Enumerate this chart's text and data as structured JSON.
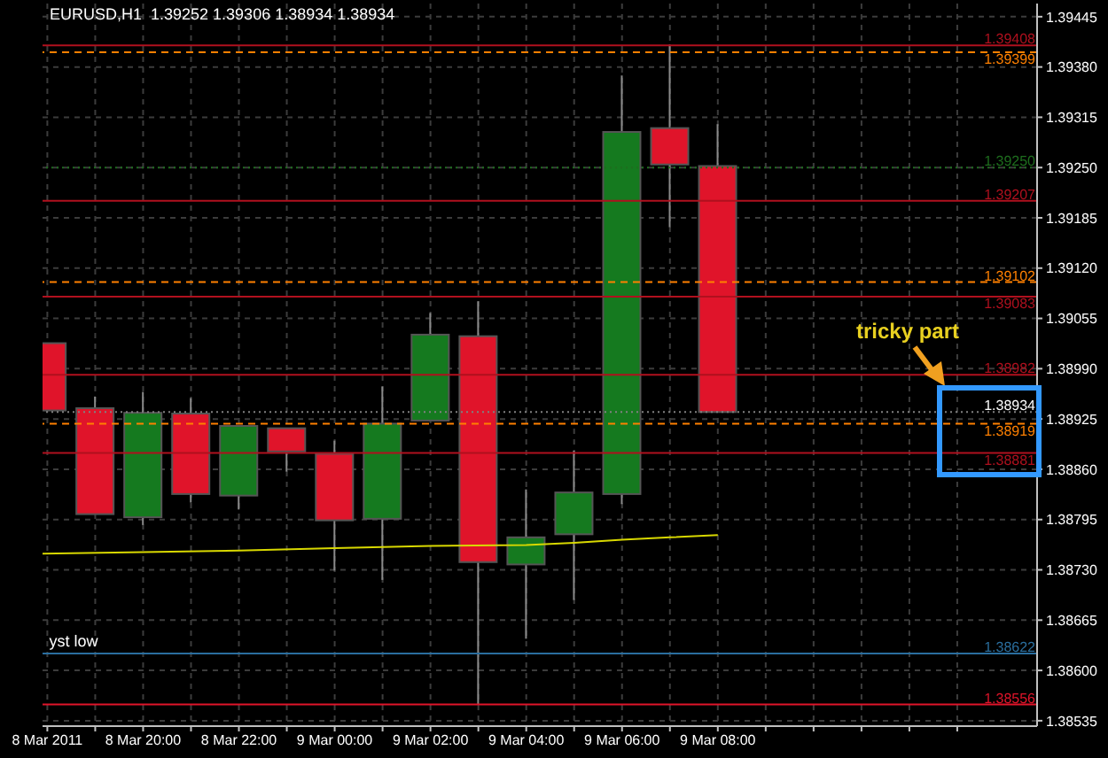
{
  "chart_data": {
    "type": "candlestick",
    "title": "EURUSD,H1  1.39252 1.39306 1.38934 1.38934",
    "x": [
      "2011-03-08T18:00",
      "2011-03-08T19:00",
      "2011-03-08T20:00",
      "2011-03-08T21:00",
      "2011-03-08T22:00",
      "2011-03-08T23:00",
      "2011-03-09T00:00",
      "2011-03-09T01:00",
      "2011-03-09T02:00",
      "2011-03-09T03:00",
      "2011-03-09T04:00",
      "2011-03-09T05:00",
      "2011-03-09T06:00",
      "2011-03-09T07:00",
      "2011-03-09T08:00"
    ],
    "ohlc": [
      [
        1.39023,
        1.39023,
        1.38936,
        1.38936
      ],
      [
        1.38939,
        1.38954,
        1.38802,
        1.38802
      ],
      [
        1.38798,
        1.3896,
        1.38788,
        1.38933
      ],
      [
        1.38932,
        1.38952,
        1.38817,
        1.38828
      ],
      [
        1.38826,
        1.38916,
        1.38808,
        1.38916
      ],
      [
        1.38913,
        1.38913,
        1.38857,
        1.38883
      ],
      [
        1.3888,
        1.38897,
        1.38729,
        1.38794
      ],
      [
        1.38796,
        1.38967,
        1.38717,
        1.38919
      ],
      [
        1.38923,
        1.39062,
        1.38923,
        1.39034
      ],
      [
        1.39032,
        1.39077,
        1.38556,
        1.3874
      ],
      [
        1.38737,
        1.38834,
        1.38641,
        1.38772
      ],
      [
        1.38776,
        1.38884,
        1.38691,
        1.3883
      ],
      [
        1.38828,
        1.39369,
        1.38815,
        1.39296
      ],
      [
        1.39301,
        1.39409,
        1.39173,
        1.39254
      ],
      [
        1.39252,
        1.39306,
        1.38934,
        1.38934
      ]
    ],
    "colors": [
      "#e0142a",
      "#e0142a",
      "#157a1f",
      "#e0142a",
      "#157a1f",
      "#e0142a",
      "#e0142a",
      "#157a1f",
      "#157a1f",
      "#e0142a",
      "#157a1f",
      "#157a1f",
      "#157a1f",
      "#e0142a",
      "#e0142a"
    ],
    "series": [
      {
        "type": "line",
        "color": "#d8d800",
        "x": [
          "2011-03-08T17:54",
          "2011-03-08T20:00",
          "2011-03-08T22:00",
          "2011-03-09T00:00",
          "2011-03-09T02:00",
          "2011-03-09T04:00",
          "2011-03-09T05:00",
          "2011-03-09T06:00",
          "2011-03-09T07:00",
          "2011-03-09T08:00"
        ],
        "values": [
          1.38751,
          1.38753,
          1.38755,
          1.38758,
          1.38761,
          1.38762,
          1.38765,
          1.38769,
          1.38772,
          1.38775
        ]
      }
    ],
    "xlim": [
      "2011-03-08T17:54",
      "2011-03-09T14:40"
    ],
    "xticks": [
      {
        "value": "2011-03-08T18:00",
        "label": "8 Mar 2011"
      },
      {
        "value": "2011-03-08T19:00",
        "label": null
      },
      {
        "value": "2011-03-08T20:00",
        "label": "8 Mar 20:00"
      },
      {
        "value": "2011-03-08T21:00",
        "label": null
      },
      {
        "value": "2011-03-08T22:00",
        "label": "8 Mar 22:00"
      },
      {
        "value": "2011-03-08T23:00",
        "label": null
      },
      {
        "value": "2011-03-09T00:00",
        "label": "9 Mar 00:00"
      },
      {
        "value": "2011-03-09T01:00",
        "label": null
      },
      {
        "value": "2011-03-09T02:00",
        "label": "9 Mar 02:00"
      },
      {
        "value": "2011-03-09T03:00",
        "label": null
      },
      {
        "value": "2011-03-09T04:00",
        "label": "9 Mar 04:00"
      },
      {
        "value": "2011-03-09T05:00",
        "label": null
      },
      {
        "value": "2011-03-09T06:00",
        "label": "9 Mar 06:00"
      },
      {
        "value": "2011-03-09T07:00",
        "label": null
      },
      {
        "value": "2011-03-09T08:00",
        "label": "9 Mar 08:00"
      },
      {
        "value": "2011-03-09T09:00",
        "label": null
      },
      {
        "value": "2011-03-09T10:00",
        "label": null
      },
      {
        "value": "2011-03-09T11:00",
        "label": null
      },
      {
        "value": "2011-03-09T12:00",
        "label": null
      },
      {
        "value": "2011-03-09T13:00",
        "label": null
      }
    ],
    "ylim": [
      1.38528,
      1.39462
    ],
    "yticks": [
      {
        "value": 1.39445,
        "label": "1.39445"
      },
      {
        "value": 1.3938,
        "label": "1.39380"
      },
      {
        "value": 1.39315,
        "label": "1.39315"
      },
      {
        "value": 1.3925,
        "label": "1.39250"
      },
      {
        "value": 1.39185,
        "label": "1.39185"
      },
      {
        "value": 1.3912,
        "label": "1.39120"
      },
      {
        "value": 1.39055,
        "label": "1.39055"
      },
      {
        "value": 1.3899,
        "label": "1.38990"
      },
      {
        "value": 1.38925,
        "label": "1.38925"
      },
      {
        "value": 1.3886,
        "label": "1.38860"
      },
      {
        "value": 1.38795,
        "label": "1.38795"
      },
      {
        "value": 1.3873,
        "label": "1.38730"
      },
      {
        "value": 1.38665,
        "label": "1.38665"
      },
      {
        "value": 1.386,
        "label": "1.38600"
      },
      {
        "value": 1.38535,
        "label": "1.38535"
      }
    ],
    "grid": true,
    "ref_lines": [
      {
        "axis": "y",
        "value": 1.39408,
        "label": "1.39408",
        "color": "#b0101e",
        "line_style": "solid"
      },
      {
        "axis": "y",
        "value": 1.39399,
        "label": "1.39399",
        "color": "#ff8000",
        "line_style": "dashed"
      },
      {
        "axis": "y",
        "value": 1.3925,
        "label": "1.39250",
        "color": "#1e6e1e",
        "line_style": "dotted"
      },
      {
        "axis": "y",
        "value": 1.39207,
        "label": "1.39207",
        "color": "#b0101e",
        "line_style": "solid"
      },
      {
        "axis": "y",
        "value": 1.39102,
        "label": "1.39102",
        "color": "#ff8000",
        "line_style": "dashed"
      },
      {
        "axis": "y",
        "value": 1.39083,
        "label": "1.39083",
        "color": "#b0101e",
        "line_style": "solid"
      },
      {
        "axis": "y",
        "value": 1.38982,
        "label": "1.38982",
        "color": "#b0101e",
        "line_style": "solid"
      },
      {
        "axis": "y",
        "value": 1.38934,
        "label": "1.38934",
        "color": "#808080",
        "line_style": "dotted"
      },
      {
        "axis": "y",
        "value": 1.38919,
        "label": "1.38919",
        "color": "#ff8000",
        "line_style": "dashed"
      },
      {
        "axis": "y",
        "value": 1.38881,
        "label": "1.38881",
        "color": "#b0101e",
        "line_style": "solid"
      },
      {
        "axis": "y",
        "value": 1.38622,
        "label": "1.38622",
        "color": "#2a6e9e",
        "line_style": "solid"
      },
      {
        "axis": "y",
        "value": 1.38556,
        "label": "1.38556",
        "color": "#e0142a",
        "line_style": "solid"
      }
    ],
    "annotations": [
      "tricky part",
      {
        "text": "yst low",
        "x": "2011-03-08T18:00",
        "y": 1.38622
      }
    ]
  }
}
